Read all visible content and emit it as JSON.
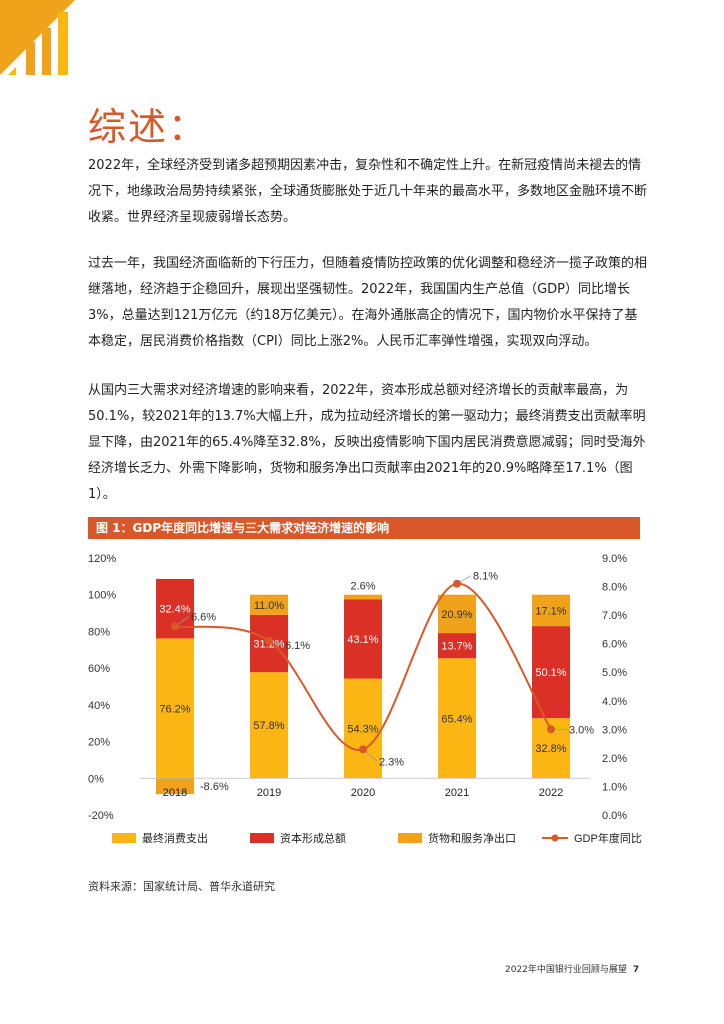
{
  "page_title": "综述：",
  "paragraphs": [
    "2022年，全球经济受到诸多超预期因素冲击，复杂性和不确定性上升。在新冠疫情尚未褪去的情况下，地缘政治局势持续紧张，全球通货膨胀处于近几十年来的最高水平，多数地区金融环境不断收紧。世界经济呈现疲弱增长态势。",
    "过去一年，我国经济面临新的下行压力，但随着疫情防控政策的优化调整和稳经济一揽子政策的相继落地，经济趋于企稳回升，展现出坚强韧性。2022年，我国国内生产总值（GDP）同比增长3%，总量达到121万亿元（约18万亿美元）。在海外通胀高企的情况下，国内物价水平保持了基本稳定，居民消费价格指数（CPI）同比上涨2%。人民币汇率弹性增强，实现双向浮动。",
    "从国内三大需求对经济增速的影响来看，2022年，资本形成总额对经济增长的贡献率最高，为50.1%，较2021年的13.7%大幅上升，成为拉动经济增长的第一驱动力；最终消费支出贡献率明显下降，由2021年的65.4%降至32.8%，反映出疫情影响下国内居民消费意愿减弱；同时受海外经济增长乏力、外需下降影响，货物和服务净出口贡献率由2021年的20.9%略降至17.1%（图1）。"
  ],
  "figure_title": "图 1：GDP年度同比增速与三大需求对经济增速的影响",
  "chart_data": {
    "type": "bar",
    "categories": [
      "2018",
      "2019",
      "2020",
      "2021",
      "2022"
    ],
    "series": [
      {
        "name": "最终消费支出",
        "values": [
          76.2,
          57.8,
          54.3,
          65.4,
          32.8
        ],
        "labels": [
          "76.2%",
          "57.8%",
          "54.3%",
          "65.4%",
          "32.8%"
        ],
        "color": "#fbb614"
      },
      {
        "name": "资本形成总额",
        "values": [
          32.4,
          31.2,
          43.1,
          13.7,
          50.1
        ],
        "labels": [
          "32.4%",
          "31.2%",
          "43.1%",
          "13.7%",
          "50.1%"
        ],
        "color": "#db3026"
      },
      {
        "name": "货物和服务净出口",
        "values": [
          -8.6,
          11.0,
          2.6,
          20.9,
          17.1
        ],
        "labels": [
          "-8.6%",
          "11.0%",
          "2.6%",
          "20.9%",
          "17.1%"
        ],
        "color": "#f0a21b"
      },
      {
        "name": "GDP年度同比",
        "axis": "right",
        "values": [
          6.6,
          6.1,
          2.3,
          8.1,
          3.0
        ],
        "labels": [
          "6.6%",
          "6.1%",
          "2.3%",
          "8.1%",
          "3.0%"
        ],
        "color": "#d9582a"
      }
    ],
    "y_left": {
      "range": [
        -20,
        120
      ],
      "ticks": [
        "120%",
        "100%",
        "80%",
        "60%",
        "40%",
        "20%",
        "0%",
        "-20%"
      ]
    },
    "y_right": {
      "range": [
        0,
        9
      ],
      "ticks": [
        "9.0%",
        "8.0%",
        "7.0%",
        "6.0%",
        "5.0%",
        "4.0%",
        "3.0%",
        "2.0%",
        "1.0%",
        "0.0%"
      ]
    },
    "legend": "bottom",
    "grid": false
  },
  "source_text": "资料来源：国家统计局、普华永道研究",
  "footer": {
    "text": "2022年中国银行业回顾与展望",
    "page": "7"
  }
}
